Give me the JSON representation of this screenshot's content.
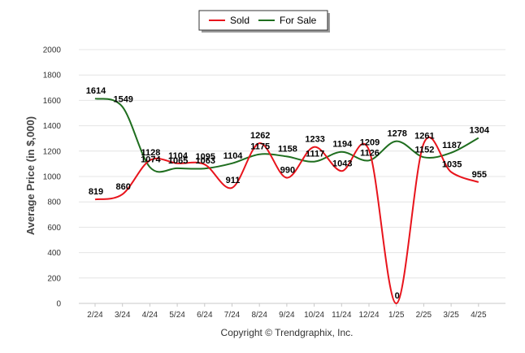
{
  "chart_data": {
    "type": "line",
    "xlabel": "",
    "ylabel": "Average Price (in $,000)",
    "credit": "Copyright © Trendgraphix, Inc.",
    "categories": [
      "2/24",
      "3/24",
      "4/24",
      "5/24",
      "6/24",
      "7/24",
      "8/24",
      "9/24",
      "10/24",
      "11/24",
      "12/24",
      "1/25",
      "2/25",
      "3/25",
      "4/25"
    ],
    "ylim": [
      0,
      2000
    ],
    "yticks": [
      0,
      200,
      400,
      600,
      800,
      1000,
      1200,
      1400,
      1600,
      1800,
      2000
    ],
    "grid": true,
    "legend_position": "top-center",
    "series": [
      {
        "name": "Sold",
        "color": "#e8141c",
        "values": [
          819,
          860,
          1128,
          1104,
          1095,
          911,
          1262,
          990,
          1233,
          1043,
          1209,
          0,
          1261,
          1035,
          955
        ]
      },
      {
        "name": "For Sale",
        "color": "#1f6e1f",
        "values": [
          1614,
          1549,
          1074,
          1065,
          1063,
          1104,
          1175,
          1158,
          1117,
          1194,
          1126,
          1278,
          1152,
          1187,
          1304
        ]
      }
    ]
  }
}
